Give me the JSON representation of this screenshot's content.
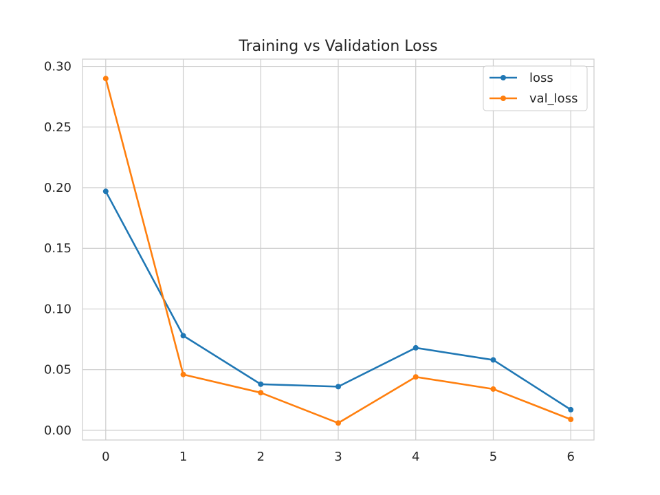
{
  "chart_data": {
    "type": "line",
    "title": "Training vs Validation Loss",
    "xlabel": "",
    "ylabel": "",
    "x": [
      0,
      1,
      2,
      3,
      4,
      5,
      6
    ],
    "x_ticks": [
      "0",
      "1",
      "2",
      "3",
      "4",
      "5",
      "6"
    ],
    "y_ticks": [
      "0.00",
      "0.05",
      "0.10",
      "0.15",
      "0.20",
      "0.25",
      "0.30"
    ],
    "xlim": [
      -0.3,
      6.3
    ],
    "ylim": [
      -0.008,
      0.306
    ],
    "grid": true,
    "legend_position": "top-right",
    "series": [
      {
        "name": "loss",
        "color": "#1f77b4",
        "values": [
          0.197,
          0.078,
          0.038,
          0.036,
          0.068,
          0.058,
          0.017
        ]
      },
      {
        "name": "val_loss",
        "color": "#ff7f0e",
        "values": [
          0.29,
          0.046,
          0.031,
          0.006,
          0.044,
          0.034,
          0.009
        ]
      }
    ]
  }
}
